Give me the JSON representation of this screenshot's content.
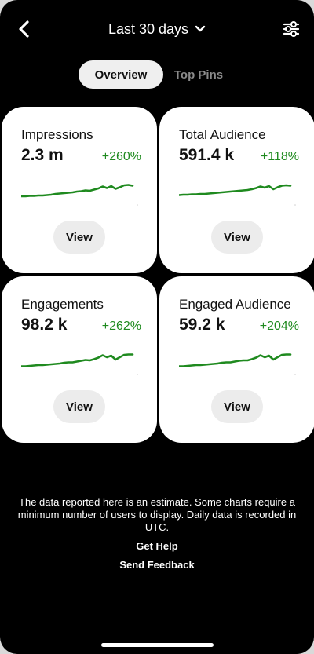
{
  "header": {
    "back_icon": "chevron-left-icon",
    "date_range_label": "Last 30 days",
    "date_range_icon": "chevron-down-icon",
    "filter_icon": "sliders-icon"
  },
  "tabs": [
    {
      "label": "Overview",
      "active": true
    },
    {
      "label": "Top Pins",
      "active": false
    }
  ],
  "colors": {
    "background": "#000000",
    "card": "#ffffff",
    "trend_green": "#1f8a1f",
    "active_tab": "#efefef",
    "inactive_tab_text": "#8a8a8a"
  },
  "metrics": [
    {
      "title": "Impressions",
      "value": "2.3 m",
      "change": "+260%",
      "button": "View"
    },
    {
      "title": "Total Audience",
      "value": "591.4 k",
      "change": "+118%",
      "button": "View"
    },
    {
      "title": "Engagements",
      "value": "98.2 k",
      "change": "+262%",
      "button": "View"
    },
    {
      "title": "Engaged Audience",
      "value": "59.2 k",
      "change": "+204%",
      "button": "View"
    }
  ],
  "chart_data": [
    {
      "type": "line",
      "name": "Impressions",
      "values": [
        22,
        22,
        23,
        23,
        24,
        24,
        25,
        26,
        28,
        29,
        30,
        31,
        32,
        34,
        35,
        37,
        36,
        39,
        42,
        47,
        43,
        48,
        41,
        45,
        50,
        51,
        49
      ]
    },
    {
      "type": "line",
      "name": "Total Audience",
      "values": [
        25,
        26,
        26,
        27,
        27,
        28,
        28,
        29,
        30,
        31,
        32,
        33,
        34,
        35,
        36,
        37,
        38,
        40,
        43,
        47,
        44,
        48,
        40,
        45,
        49,
        50,
        49
      ]
    },
    {
      "type": "line",
      "name": "Engagements",
      "values": [
        21,
        21,
        22,
        23,
        24,
        24,
        25,
        26,
        27,
        28,
        30,
        31,
        31,
        33,
        35,
        37,
        36,
        39,
        43,
        49,
        44,
        48,
        38,
        44,
        50,
        51,
        51
      ]
    },
    {
      "type": "line",
      "name": "Engaged Audience",
      "values": [
        21,
        21,
        22,
        23,
        24,
        24,
        25,
        26,
        27,
        28,
        30,
        31,
        31,
        33,
        35,
        36,
        36,
        39,
        43,
        49,
        44,
        48,
        38,
        44,
        50,
        51,
        51
      ]
    }
  ],
  "footer": {
    "disclaimer": "The data reported here is an estimate. Some charts require a minimum number of users to display. Daily data is recorded in UTC.",
    "help_link": "Get Help",
    "feedback_link": "Send Feedback"
  }
}
